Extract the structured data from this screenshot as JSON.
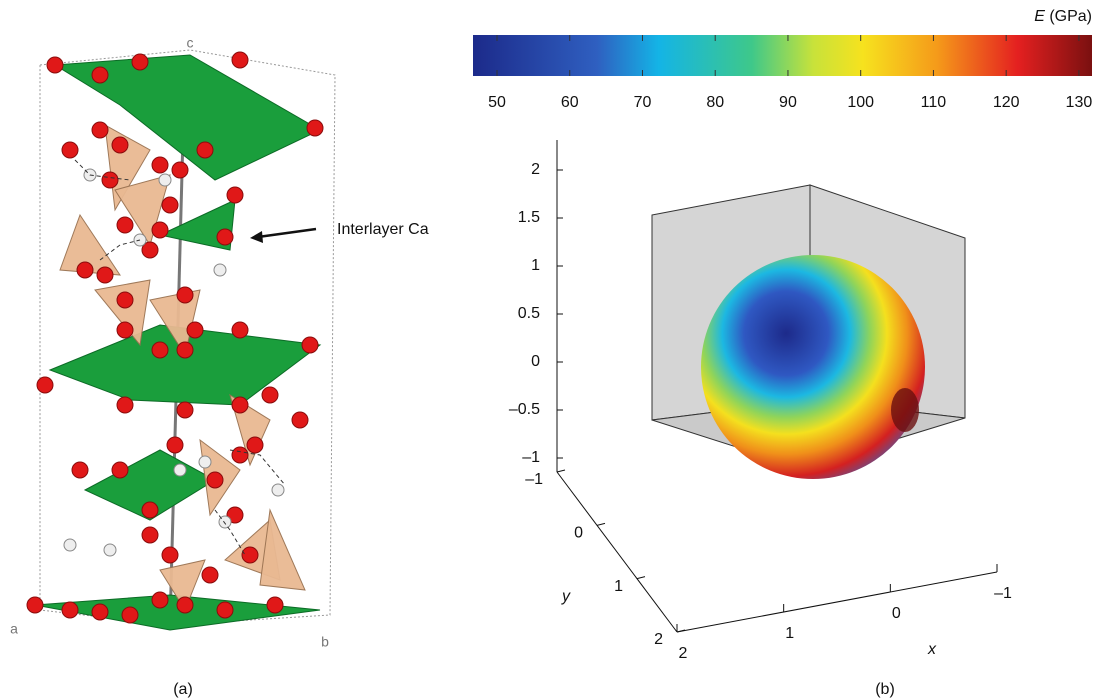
{
  "panel_a": {
    "label": "(a)",
    "axis_a": "a",
    "axis_b": "b",
    "axis_c": "c",
    "annotation": "Interlayer Ca"
  },
  "panel_b": {
    "label": "(b)",
    "colorbar": {
      "symbol": "E",
      "unit": "(GPa)",
      "lim": [
        46.7,
        131.8
      ],
      "ticks": [
        50,
        60,
        70,
        80,
        90,
        100,
        110,
        120,
        130
      ]
    },
    "z_ticks": [
      2,
      1.5,
      1,
      0.5,
      0,
      {
        "value": -0.5,
        "label": "–0.5"
      },
      {
        "value": -1,
        "label": "–1"
      }
    ],
    "y_ticks": [
      {
        "value": -1,
        "label": "–1"
      },
      0,
      1,
      2
    ],
    "x_ticks": [
      2,
      1,
      0,
      {
        "value": -1,
        "label": "–1"
      }
    ],
    "x_label": "x",
    "y_label": "y"
  }
}
